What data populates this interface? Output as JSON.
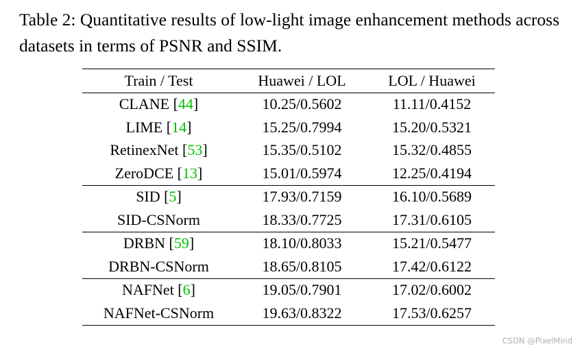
{
  "caption": "Table 2: Quantitative results of low-light image enhancement methods across datasets in terms of PSNR and SSIM.",
  "table": {
    "header": [
      "Train / Test",
      "Huawei / LOL",
      "LOL / Huawei"
    ],
    "groups": [
      [
        {
          "method": [
            "CLANE [",
            "44",
            "]"
          ],
          "values": [
            "10.25/0.5602",
            "11.11/0.4152"
          ],
          "bold": false
        },
        {
          "method": [
            "LIME [",
            "14",
            "]"
          ],
          "values": [
            "15.25/0.7994",
            "15.20/0.5321"
          ],
          "bold": false
        },
        {
          "method": [
            "RetinexNet [",
            "53",
            "]"
          ],
          "values": [
            "15.35/0.5102",
            "15.32/0.4855"
          ],
          "bold": false
        },
        {
          "method": [
            "ZeroDCE [",
            "13",
            "]"
          ],
          "values": [
            "15.01/0.5974",
            "12.25/0.4194"
          ],
          "bold": false
        }
      ],
      [
        {
          "method": [
            "SID [",
            "5",
            "]"
          ],
          "values": [
            "17.93/0.7159",
            "16.10/0.5689"
          ],
          "bold": false
        },
        {
          "method": [
            "SID-CSNorm"
          ],
          "values": [
            "18.33/0.7725",
            "17.31/0.6105"
          ],
          "bold": true
        }
      ],
      [
        {
          "method": [
            "DRBN [",
            "59",
            "]"
          ],
          "values": [
            "18.10/0.8033",
            "15.21/0.5477"
          ],
          "bold": false
        },
        {
          "method": [
            "DRBN-CSNorm"
          ],
          "values": [
            "18.65/0.8105",
            "17.42/0.6122"
          ],
          "bold": true
        }
      ],
      [
        {
          "method": [
            "NAFNet [",
            "6",
            "]"
          ],
          "values": [
            "19.05/0.7901",
            "17.02/0.6002"
          ],
          "bold": false
        },
        {
          "method": [
            "NAFNet-CSNorm"
          ],
          "values": [
            "19.63/0.8322",
            "17.53/0.6257"
          ],
          "bold": true
        }
      ]
    ]
  },
  "watermark": "CSDN @PixelMind"
}
